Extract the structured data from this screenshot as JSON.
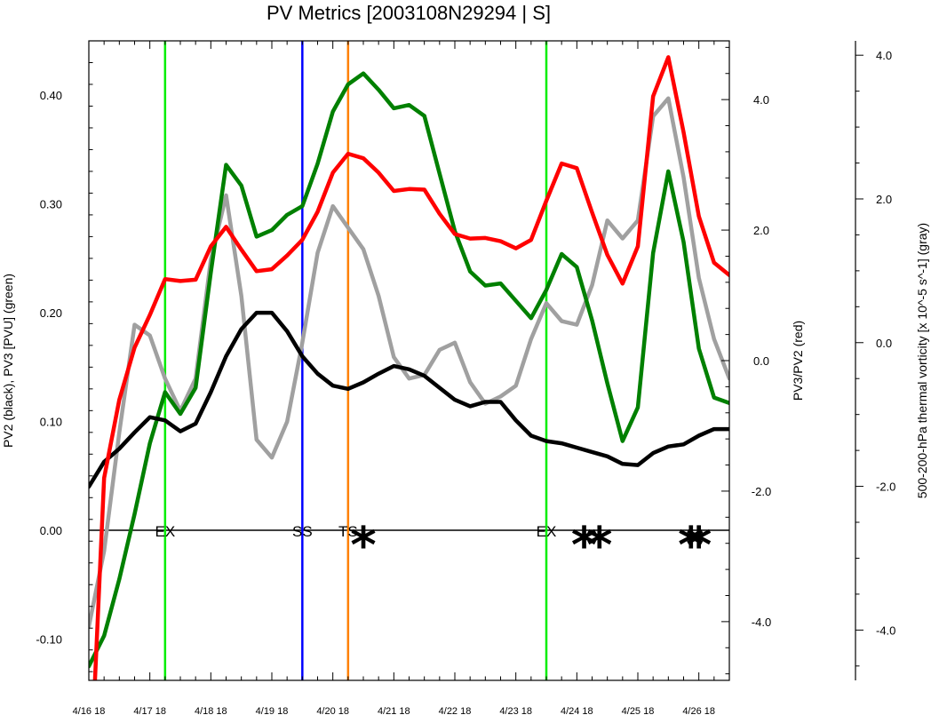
{
  "chart_data": {
    "type": "line",
    "title": "PV Metrics [2003108N29294 | S]",
    "xlabels": [
      "4/16 18",
      "4/17 18",
      "4/18 18",
      "4/19 18",
      "4/20 18",
      "4/21 18",
      "4/22 18",
      "4/23 18",
      "4/24 18",
      "4/25 18",
      "4/26 18"
    ],
    "xlim_days": [
      0,
      10.5
    ],
    "left_axis": {
      "label": "PV2 (black), PV3 [PVU] (green)",
      "ylim": [
        -0.138,
        0.45
      ],
      "ticks": [
        -0.1,
        0.0,
        0.1,
        0.2,
        0.3,
        0.4
      ],
      "tick_labels": [
        "-0.10",
        "0.00",
        "0.10",
        "0.20",
        "0.30",
        "0.40"
      ]
    },
    "right_axis": {
      "label": "PV3/PV2 (red)",
      "ylim": [
        -4.9,
        4.9
      ],
      "ticks": [
        -4.0,
        -2.0,
        0.0,
        2.0,
        4.0
      ],
      "tick_labels": [
        "-4.0",
        "-2.0",
        "0.0",
        "2.0",
        "4.0"
      ]
    },
    "outer_axis": {
      "label": "500-200-hPa thermal vorticity [x 10^-5 s^-1] (gray)",
      "ylim": [
        -4.7,
        4.2
      ],
      "ticks": [
        -4.0,
        -2.0,
        0.0,
        2.0,
        4.0
      ],
      "tick_labels": [
        "-4.0",
        "-2.0",
        "0.0",
        "2.0",
        "4.0"
      ]
    },
    "series": [
      {
        "name": "PV2",
        "axis": "left",
        "color": "#000000",
        "x": [
          0,
          0.25,
          0.5,
          0.75,
          1,
          1.25,
          1.5,
          1.75,
          2,
          2.25,
          2.5,
          2.75,
          3,
          3.25,
          3.5,
          3.75,
          4,
          4.25,
          4.5,
          4.75,
          5,
          5.25,
          5.5,
          5.75,
          6,
          6.25,
          6.5,
          6.75,
          7,
          7.25,
          7.5,
          7.75,
          8,
          8.25,
          8.5,
          8.75,
          9,
          9.25,
          9.5,
          9.75,
          10,
          10.25,
          10.5
        ],
        "values": [
          0.04,
          0.063,
          0.075,
          0.09,
          0.104,
          0.101,
          0.091,
          0.098,
          0.127,
          0.16,
          0.185,
          0.2,
          0.2,
          0.183,
          0.16,
          0.144,
          0.133,
          0.13,
          0.136,
          0.144,
          0.151,
          0.148,
          0.142,
          0.131,
          0.12,
          0.114,
          0.118,
          0.118,
          0.101,
          0.087,
          0.082,
          0.08,
          0.076,
          0.072,
          0.068,
          0.061,
          0.06,
          0.071,
          0.077,
          0.079,
          0.087,
          0.093,
          0.093
        ]
      },
      {
        "name": "PV3",
        "axis": "left",
        "color": "#008000",
        "x": [
          0,
          0.25,
          0.5,
          0.75,
          1,
          1.25,
          1.5,
          1.75,
          2,
          2.25,
          2.5,
          2.75,
          3,
          3.25,
          3.5,
          3.75,
          4,
          4.25,
          4.5,
          4.75,
          5,
          5.25,
          5.5,
          5.75,
          6,
          6.25,
          6.5,
          6.75,
          7,
          7.25,
          7.5,
          7.75,
          8,
          8.25,
          8.5,
          8.75,
          9,
          9.25,
          9.5,
          9.75,
          10,
          10.25,
          10.5
        ],
        "values": [
          -0.125,
          -0.097,
          -0.045,
          0.015,
          0.08,
          0.127,
          0.107,
          0.131,
          0.237,
          0.336,
          0.317,
          0.27,
          0.276,
          0.29,
          0.298,
          0.337,
          0.385,
          0.41,
          0.42,
          0.405,
          0.388,
          0.391,
          0.381,
          0.328,
          0.275,
          0.238,
          0.225,
          0.227,
          0.211,
          0.195,
          0.221,
          0.254,
          0.242,
          0.193,
          0.135,
          0.082,
          0.113,
          0.255,
          0.33,
          0.265,
          0.167,
          0.122,
          0.117
        ]
      },
      {
        "name": "PV3/PV2",
        "axis": "right",
        "color": "#ff0000",
        "x": [
          0.1,
          0.25,
          0.5,
          0.75,
          1,
          1.25,
          1.5,
          1.75,
          2,
          2.25,
          2.5,
          2.75,
          3,
          3.25,
          3.5,
          3.75,
          4,
          4.25,
          4.5,
          4.75,
          5,
          5.25,
          5.5,
          5.75,
          6,
          6.25,
          6.5,
          6.75,
          7,
          7.25,
          7.5,
          7.75,
          8,
          8.25,
          8.5,
          8.75,
          9,
          9.25,
          9.5,
          9.75,
          10,
          10.25,
          10.5
        ],
        "values": [
          -4.9,
          -1.8,
          -0.6,
          0.2,
          0.7,
          1.25,
          1.22,
          1.24,
          1.75,
          2.05,
          1.7,
          1.37,
          1.4,
          1.61,
          1.85,
          2.28,
          2.88,
          3.17,
          3.1,
          2.88,
          2.6,
          2.63,
          2.62,
          2.25,
          1.94,
          1.87,
          1.88,
          1.83,
          1.72,
          1.85,
          2.45,
          3.02,
          2.95,
          2.27,
          1.62,
          1.18,
          1.75,
          4.05,
          4.65,
          3.5,
          2.21,
          1.5,
          1.31
        ]
      },
      {
        "name": "thermal vorticity",
        "axis": "outer",
        "color": "#a0a0a0",
        "x": [
          0,
          0.25,
          0.5,
          0.75,
          1,
          1.25,
          1.5,
          1.75,
          2,
          2.25,
          2.5,
          2.75,
          3,
          3.25,
          3.5,
          3.75,
          4,
          4.25,
          4.5,
          4.75,
          5,
          5.25,
          5.5,
          5.75,
          6,
          6.25,
          6.5,
          6.75,
          7,
          7.25,
          7.5,
          7.75,
          8,
          8.25,
          8.5,
          8.75,
          9,
          9.25,
          9.5,
          9.75,
          10,
          10.25,
          10.5
        ],
        "values": [
          -3.95,
          -2.9,
          -1.25,
          0.25,
          0.1,
          -0.5,
          -0.95,
          -0.5,
          1.15,
          2.05,
          0.65,
          -1.35,
          -1.6,
          -1.1,
          0.0,
          1.25,
          1.9,
          1.6,
          1.3,
          0.65,
          -0.2,
          -0.5,
          -0.45,
          -0.1,
          0.0,
          -0.55,
          -0.85,
          -0.75,
          -0.6,
          0.05,
          0.55,
          0.3,
          0.25,
          0.8,
          1.7,
          1.45,
          1.7,
          3.15,
          3.4,
          2.3,
          0.9,
          0.05,
          -0.5
        ]
      }
    ],
    "vertical_lines": [
      {
        "x": 1.25,
        "color": "#00ee00",
        "label": "EX"
      },
      {
        "x": 3.5,
        "color": "#0000ff",
        "label": "SS"
      },
      {
        "x": 4.25,
        "color": "#ff8000",
        "label": "TS"
      },
      {
        "x": 7.5,
        "color": "#00ee00",
        "label": "EX"
      }
    ],
    "markers": [
      {
        "x": 4.5,
        "label": "*"
      },
      {
        "x": 8.12,
        "label": "*"
      },
      {
        "x": 8.37,
        "label": "*"
      },
      {
        "x": 9.87,
        "label": "*"
      },
      {
        "x": 10.0,
        "label": "*"
      }
    ],
    "reference_line_y": 0.0,
    "grid": false
  }
}
